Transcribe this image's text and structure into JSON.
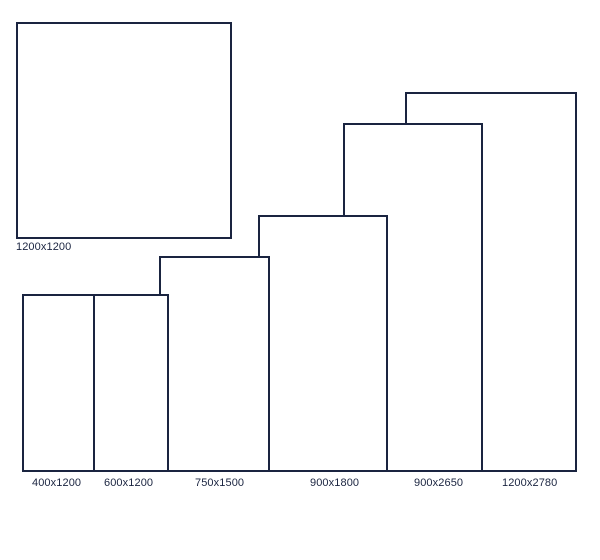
{
  "diagram": {
    "stroke_color": "#1a2440",
    "background_color": "#ffffff",
    "sizes": [
      {
        "id": "1200x1200-square",
        "label": "1200x1200"
      },
      {
        "id": "400x1200",
        "label": "400x1200"
      },
      {
        "id": "600x1200",
        "label": "600x1200"
      },
      {
        "id": "750x1500",
        "label": "750x1500"
      },
      {
        "id": "900x1800",
        "label": "900x1800"
      },
      {
        "id": "900x2650",
        "label": "900x2650"
      },
      {
        "id": "1200x2780",
        "label": "1200x2780"
      }
    ]
  }
}
